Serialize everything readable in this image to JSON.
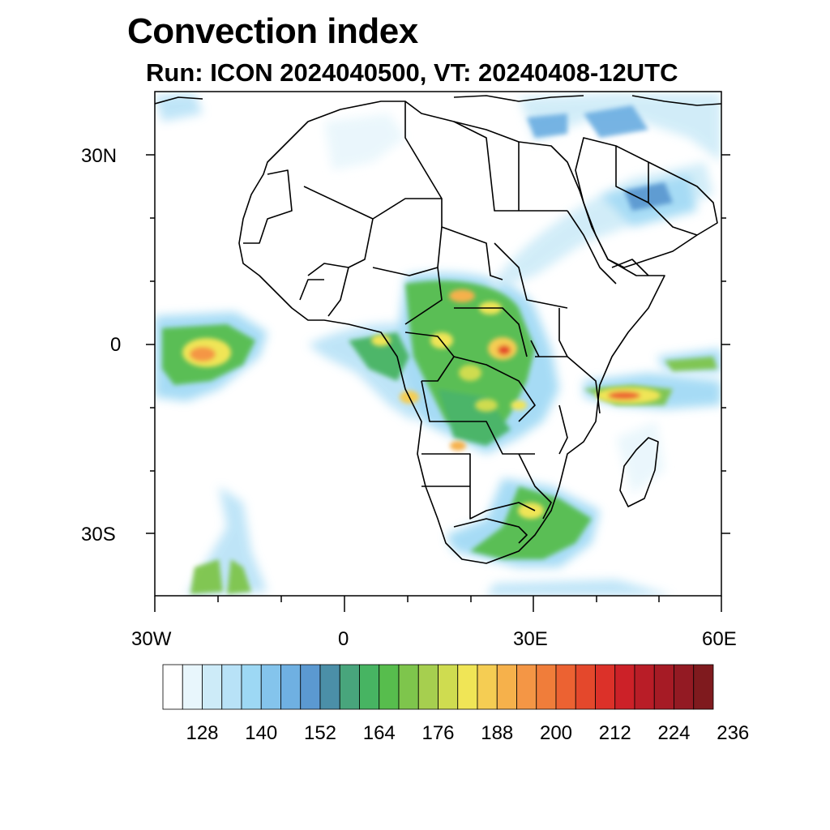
{
  "title": "Convection index",
  "subtitle": "Run: ICON 2024040500,  VT: 20240408-12UTC",
  "map": {
    "lat_labels": [
      "30N",
      "0",
      "30S"
    ],
    "lon_labels": [
      "30W",
      "0",
      "30E",
      "60E"
    ],
    "lon_range": [
      -30,
      60
    ],
    "lat_range": [
      -40,
      40
    ]
  },
  "colorbar": {
    "tick_labels": [
      "128",
      "140",
      "152",
      "164",
      "176",
      "188",
      "200",
      "212",
      "224",
      "236"
    ],
    "colors": [
      "#ffffff",
      "#e8f6fc",
      "#cdebf8",
      "#b8e2f7",
      "#9dd8f4",
      "#84c4ec",
      "#6fb0e2",
      "#5b99d1",
      "#4b8fa8",
      "#48a57c",
      "#47b462",
      "#57bd4d",
      "#7ec54c",
      "#a6cf4f",
      "#cfdc50",
      "#f0e556",
      "#f5cd53",
      "#f6b14b",
      "#f49645",
      "#f07d3a",
      "#ec6232",
      "#e4482c",
      "#dc3129",
      "#cc2128",
      "#b91d27",
      "#a61b25",
      "#931a23",
      "#7f1a1e"
    ]
  }
}
